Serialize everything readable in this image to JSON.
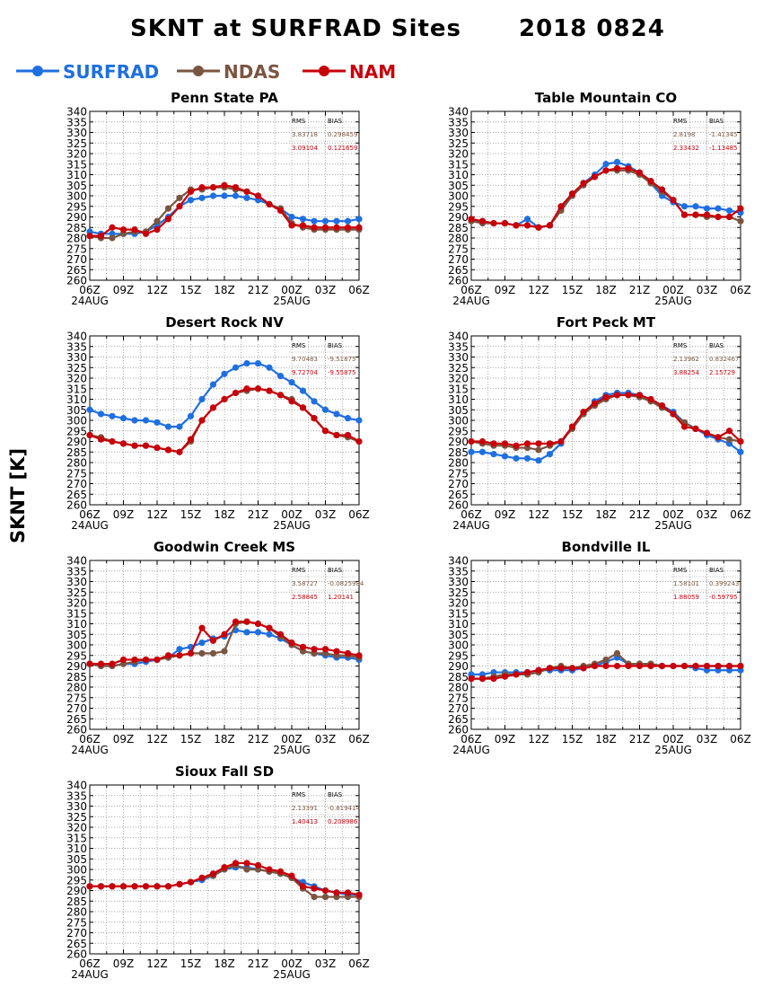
{
  "chart_data": {
    "type": "line",
    "title": "SKNT at SURFRAD Sites",
    "date_label": "2018 0824",
    "ylabel": "SKNT [K]",
    "ylim": [
      260,
      340
    ],
    "yticks": [
      260,
      265,
      270,
      275,
      280,
      285,
      290,
      295,
      300,
      305,
      310,
      315,
      320,
      325,
      330,
      335,
      340
    ],
    "x_hours": [
      0,
      1,
      2,
      3,
      4,
      5,
      6,
      7,
      8,
      9,
      10,
      11,
      12,
      13,
      14,
      15,
      16,
      17,
      18,
      19,
      20,
      21,
      22,
      23,
      24
    ],
    "xticks": [
      "06Z",
      "09Z",
      "12Z",
      "15Z",
      "18Z",
      "21Z",
      "00Z",
      "03Z",
      "06Z"
    ],
    "date_labels": [
      "24AUG",
      "25AUG"
    ],
    "grid": true,
    "legend": [
      {
        "name": "SURFRAD",
        "color": "#1f6fe0"
      },
      {
        "name": "NDAS",
        "color": "#7a5541"
      },
      {
        "name": "NAM",
        "color": "#c8000a"
      }
    ],
    "stats_header": [
      "RMS",
      "BIAS"
    ],
    "panels": [
      {
        "name": "Penn State PA",
        "stats": {
          "ndas": [
            "3.83718",
            "0.298459"
          ],
          "nam": [
            "3.09104",
            "0.121659"
          ]
        },
        "series": {
          "surfrad": [
            283,
            282,
            282,
            282,
            282,
            283,
            286,
            290,
            295,
            298,
            299,
            300,
            300,
            300,
            299,
            298,
            296,
            294,
            290,
            289,
            288,
            288,
            288,
            288,
            289
          ],
          "ndas": [
            281,
            280,
            280,
            282,
            283,
            283,
            288,
            294,
            299,
            303,
            303,
            304,
            304,
            303,
            302,
            300,
            296,
            294,
            287,
            285,
            284,
            284,
            284,
            284,
            284
          ],
          "nam": [
            281,
            281,
            285,
            284,
            284,
            282,
            284,
            289,
            295,
            302,
            304,
            304,
            305,
            304,
            302,
            300,
            296,
            293,
            286,
            286,
            285,
            285,
            285,
            285,
            285
          ]
        }
      },
      {
        "name": "Table Mountain CO",
        "stats": {
          "ndas": [
            "2.8198",
            "-1.41345"
          ],
          "nam": [
            "2.33432",
            "-1.13485"
          ]
        },
        "series": {
          "surfrad": [
            288,
            288,
            287,
            287,
            286,
            289,
            285,
            286,
            294,
            300,
            306,
            310,
            315,
            316,
            314,
            311,
            306,
            300,
            297,
            295,
            295,
            294,
            294,
            293,
            292
          ],
          "ndas": [
            288,
            287,
            287,
            287,
            286,
            286,
            285,
            286,
            293,
            300,
            305,
            309,
            312,
            312,
            312,
            310,
            306,
            302,
            298,
            291,
            291,
            290,
            290,
            290,
            288
          ],
          "nam": [
            289,
            288,
            287,
            287,
            286,
            286,
            285,
            286,
            295,
            301,
            306,
            309,
            312,
            313,
            313,
            311,
            307,
            303,
            298,
            291,
            291,
            291,
            290,
            290,
            294
          ]
        }
      },
      {
        "name": "Desert Rock NV",
        "stats": {
          "ndas": [
            "9.70483",
            "-9.51875"
          ],
          "nam": [
            "9.72704",
            "-9.55875"
          ]
        },
        "series": {
          "surfrad": [
            305,
            303,
            302,
            301,
            300,
            300,
            299,
            297,
            297,
            302,
            310,
            317,
            322,
            325,
            327,
            327,
            325,
            321,
            318,
            314,
            309,
            305,
            303,
            301,
            300
          ],
          "ndas": [
            293,
            292,
            290,
            289,
            288,
            288,
            287,
            286,
            285,
            290,
            300,
            306,
            310,
            313,
            314,
            315,
            314,
            312,
            310,
            306,
            301,
            295,
            293,
            292,
            290
          ],
          "nam": [
            293,
            291,
            290,
            289,
            288,
            288,
            287,
            286,
            285,
            291,
            300,
            306,
            310,
            313,
            315,
            315,
            314,
            312,
            309,
            306,
            301,
            295,
            293,
            293,
            290
          ]
        }
      },
      {
        "name": "Fort Peck MT",
        "stats": {
          "ndas": [
            "2.13962",
            "0.832467"
          ],
          "nam": [
            "3.88254",
            "2.15729"
          ]
        },
        "series": {
          "surfrad": [
            285,
            285,
            284,
            283,
            282,
            282,
            281,
            284,
            289,
            297,
            303,
            309,
            312,
            313,
            313,
            312,
            310,
            307,
            304,
            299,
            296,
            293,
            291,
            289,
            285
          ],
          "ndas": [
            290,
            289,
            288,
            288,
            287,
            287,
            286,
            288,
            290,
            296,
            303,
            307,
            310,
            312,
            312,
            311,
            309,
            306,
            303,
            299,
            296,
            294,
            292,
            291,
            290
          ],
          "nam": [
            290,
            290,
            289,
            289,
            288,
            289,
            289,
            289,
            290,
            297,
            304,
            308,
            311,
            312,
            312,
            312,
            310,
            307,
            303,
            297,
            296,
            294,
            292,
            295,
            290
          ]
        }
      },
      {
        "name": "Goodwin Creek MS",
        "stats": {
          "ndas": [
            "3.58727",
            "-0.0825984"
          ],
          "nam": [
            "2.58845",
            "1.20141"
          ]
        },
        "series": {
          "surfrad": [
            291,
            290,
            290,
            291,
            291,
            292,
            293,
            294,
            298,
            299,
            301,
            303,
            304,
            307,
            306,
            306,
            305,
            303,
            300,
            297,
            296,
            295,
            294,
            294,
            293
          ],
          "ndas": [
            291,
            290,
            290,
            291,
            292,
            293,
            293,
            294,
            295,
            296,
            296,
            296,
            297,
            310,
            311,
            310,
            308,
            304,
            300,
            297,
            296,
            296,
            295,
            295,
            294
          ],
          "nam": [
            291,
            291,
            291,
            293,
            293,
            293,
            293,
            295,
            295,
            296,
            308,
            302,
            305,
            311,
            311,
            310,
            308,
            305,
            301,
            299,
            298,
            298,
            297,
            296,
            295
          ]
        }
      },
      {
        "name": "Bondville IL",
        "stats": {
          "ndas": [
            "1.58101",
            "0.399243"
          ],
          "nam": [
            "1.88059",
            "-0.59795"
          ]
        },
        "series": {
          "surfrad": [
            286,
            286,
            287,
            287,
            287,
            287,
            288,
            288,
            288,
            288,
            289,
            290,
            292,
            294,
            291,
            291,
            291,
            290,
            290,
            290,
            289,
            288,
            288,
            288,
            288
          ],
          "ndas": [
            284,
            284,
            285,
            286,
            286,
            286,
            287,
            289,
            290,
            289,
            290,
            291,
            293,
            296,
            291,
            291,
            291,
            290,
            290,
            290,
            290,
            290,
            290,
            290,
            290
          ],
          "nam": [
            284,
            284,
            284,
            285,
            286,
            287,
            288,
            289,
            289,
            289,
            289,
            290,
            290,
            290,
            290,
            290,
            290,
            290,
            290,
            290,
            290,
            290,
            290,
            290,
            290
          ]
        }
      },
      {
        "name": "Sioux Fall SD",
        "stats": {
          "ndas": [
            "2.13391",
            "-0.819414"
          ],
          "nam": [
            "1.40413",
            "0.208986"
          ]
        },
        "series": {
          "surfrad": [
            292,
            292,
            292,
            292,
            292,
            292,
            292,
            292,
            293,
            294,
            295,
            297,
            300,
            301,
            301,
            300,
            299,
            298,
            296,
            294,
            292,
            290,
            289,
            288,
            288
          ],
          "ndas": [
            292,
            292,
            292,
            292,
            292,
            292,
            292,
            292,
            293,
            294,
            296,
            297,
            300,
            302,
            300,
            300,
            299,
            298,
            296,
            291,
            287,
            287,
            287,
            287,
            287
          ],
          "nam": [
            292,
            292,
            292,
            292,
            292,
            292,
            292,
            292,
            293,
            294,
            296,
            298,
            301,
            303,
            303,
            302,
            300,
            299,
            297,
            292,
            291,
            290,
            289,
            289,
            288
          ]
        }
      }
    ]
  }
}
